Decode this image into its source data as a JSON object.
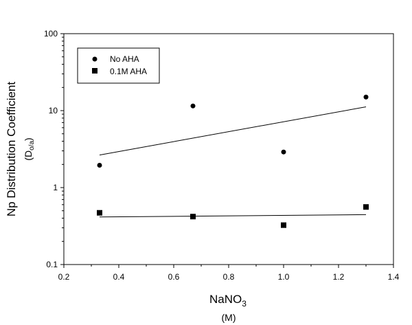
{
  "chart_data": {
    "type": "scatter",
    "xlabel": "NaNO",
    "xlabel_sub": "3",
    "xlabel_unit": "(M)",
    "ylabel": "Np Distribution Coefficient",
    "ylabel_unit_main": "D",
    "ylabel_unit_sub": "o/a",
    "xlim": [
      0.2,
      1.4
    ],
    "ylim": [
      0.1,
      100
    ],
    "yscale": "log",
    "x_ticks": [
      "0.2",
      "0.4",
      "0.6",
      "0.8",
      "1.0",
      "1.2",
      "1.4"
    ],
    "y_ticks": [
      "0.1",
      "1",
      "10",
      "100"
    ],
    "legend_position": "top-left",
    "series": [
      {
        "name": "No AHA",
        "marker": "circle",
        "color": "#000000",
        "x": [
          0.33,
          0.67,
          1.0,
          1.3
        ],
        "y": [
          1.95,
          11.5,
          2.9,
          15.0
        ],
        "trend": {
          "x": [
            0.33,
            1.3
          ],
          "y": [
            2.65,
            11.2
          ]
        }
      },
      {
        "name": "0.1M AHA",
        "marker": "square",
        "color": "#000000",
        "x": [
          0.33,
          0.67,
          1.0,
          1.3
        ],
        "y": [
          0.47,
          0.42,
          0.325,
          0.56
        ],
        "trend": {
          "x": [
            0.33,
            1.3
          ],
          "y": [
            0.415,
            0.445
          ]
        }
      }
    ]
  }
}
